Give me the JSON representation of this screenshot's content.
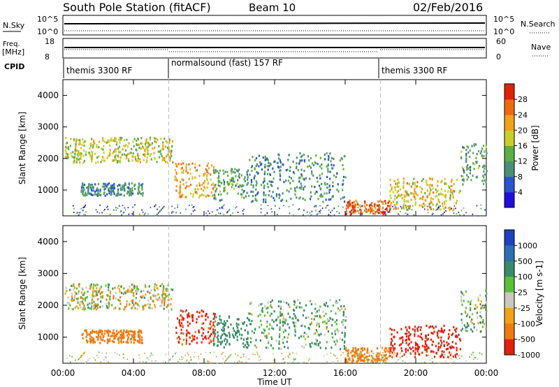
{
  "header": {
    "title": "South Pole Station (fitACF)",
    "beam": "Beam 10",
    "date": "02/Feb/2016"
  },
  "panels": {
    "nsky_label": "N.Sky",
    "nsearch_label": "N.Search",
    "nsky_ticks": [
      "10^5",
      "10^0"
    ],
    "freq_label_line1": "Freq.",
    "freq_label_line2": "[MHz]",
    "freq_ticks": [
      "18",
      "8"
    ],
    "nave_label": "Nave",
    "nave_ticks": [
      "60",
      "0"
    ],
    "cpid_label": "CPID",
    "cpid_segments": [
      {
        "label": "themis 3300 RF",
        "start_hour": 0
      },
      {
        "label": "normalsound (fast) 157 RF",
        "start_hour": 6
      },
      {
        "label": "themis 3300 RF",
        "start_hour": 18
      }
    ]
  },
  "chart_data": [
    {
      "type": "heatmap",
      "quantity": "Power",
      "ylabel": "Slant Range [km]",
      "xlabel": "Time UT",
      "xlim": [
        0,
        24
      ],
      "ylim": [
        180,
        4500
      ],
      "yticks": [
        "1000",
        "2000",
        "3000",
        "4000"
      ],
      "xticks": [
        "00:00",
        "04:00",
        "08:00",
        "12:00",
        "16:00",
        "20:00",
        "00:00"
      ],
      "colorbar": {
        "label": "Power [dB]",
        "ticks": [
          "4",
          "8",
          "12",
          "16",
          "20",
          "24",
          "28"
        ],
        "colors": [
          "#1f0fd9",
          "#2a55c8",
          "#4a8f7a",
          "#5cae46",
          "#c9cf2a",
          "#f0a21a",
          "#ee6a12",
          "#e0200e"
        ]
      },
      "regions": [
        {
          "t0": 0.1,
          "t1": 6.2,
          "r0": 1900,
          "r1": 2700,
          "power": 18
        },
        {
          "t0": 1.0,
          "t1": 4.5,
          "r0": 850,
          "r1": 1250,
          "power": 10
        },
        {
          "t0": 6.3,
          "t1": 8.6,
          "r0": 800,
          "r1": 1900,
          "power": 22
        },
        {
          "t0": 8.5,
          "t1": 10.5,
          "r0": 700,
          "r1": 1700,
          "power": 12
        },
        {
          "t0": 10.5,
          "t1": 16.0,
          "r0": 650,
          "r1": 2200,
          "power": 10
        },
        {
          "t0": 16.0,
          "t1": 18.5,
          "r0": 250,
          "r1": 700,
          "power": 26
        },
        {
          "t0": 18.5,
          "t1": 22.5,
          "r0": 400,
          "r1": 1400,
          "power": 20
        },
        {
          "t0": 22.5,
          "t1": 24.0,
          "r0": 1200,
          "r1": 2500,
          "power": 12
        }
      ]
    },
    {
      "type": "heatmap",
      "quantity": "Velocity",
      "ylabel": "Slant Range [km]",
      "xlabel": "Time UT",
      "xlim": [
        0,
        24
      ],
      "ylim": [
        180,
        4500
      ],
      "yticks": [
        "1000",
        "2000",
        "3000",
        "4000"
      ],
      "xticks": [
        "00:00",
        "04:00",
        "08:00",
        "12:00",
        "16:00",
        "20:00",
        "00:00"
      ],
      "colorbar": {
        "label": "Velocity [m s-1]",
        "ticks": [
          "1000",
          "500",
          "100",
          "25",
          "-25",
          "-100",
          "-500",
          "-1000"
        ],
        "colors": [
          "#2040c0",
          "#2e6fb0",
          "#3b8a6a",
          "#5bbf3a",
          "#c8c8c0",
          "#f0a21a",
          "#ee7a12",
          "#e02010"
        ]
      },
      "regions": [
        {
          "t0": 0.1,
          "t1": 6.2,
          "r0": 1900,
          "r1": 2700,
          "velocity": 0
        },
        {
          "t0": 1.0,
          "t1": 4.5,
          "r0": 850,
          "r1": 1250,
          "velocity": -300
        },
        {
          "t0": 6.3,
          "t1": 8.6,
          "r0": 800,
          "r1": 1900,
          "velocity": -600
        },
        {
          "t0": 8.5,
          "t1": 10.5,
          "r0": 700,
          "r1": 1700,
          "velocity": 300
        },
        {
          "t0": 10.5,
          "t1": 16.0,
          "r0": 650,
          "r1": 2200,
          "velocity": 100
        },
        {
          "t0": 16.0,
          "t1": 18.5,
          "r0": 250,
          "r1": 700,
          "velocity": -200
        },
        {
          "t0": 18.5,
          "t1": 22.5,
          "r0": 400,
          "r1": 1400,
          "velocity": -700
        },
        {
          "t0": 22.5,
          "t1": 24.0,
          "r0": 1200,
          "r1": 2500,
          "velocity": 60
        }
      ]
    }
  ]
}
